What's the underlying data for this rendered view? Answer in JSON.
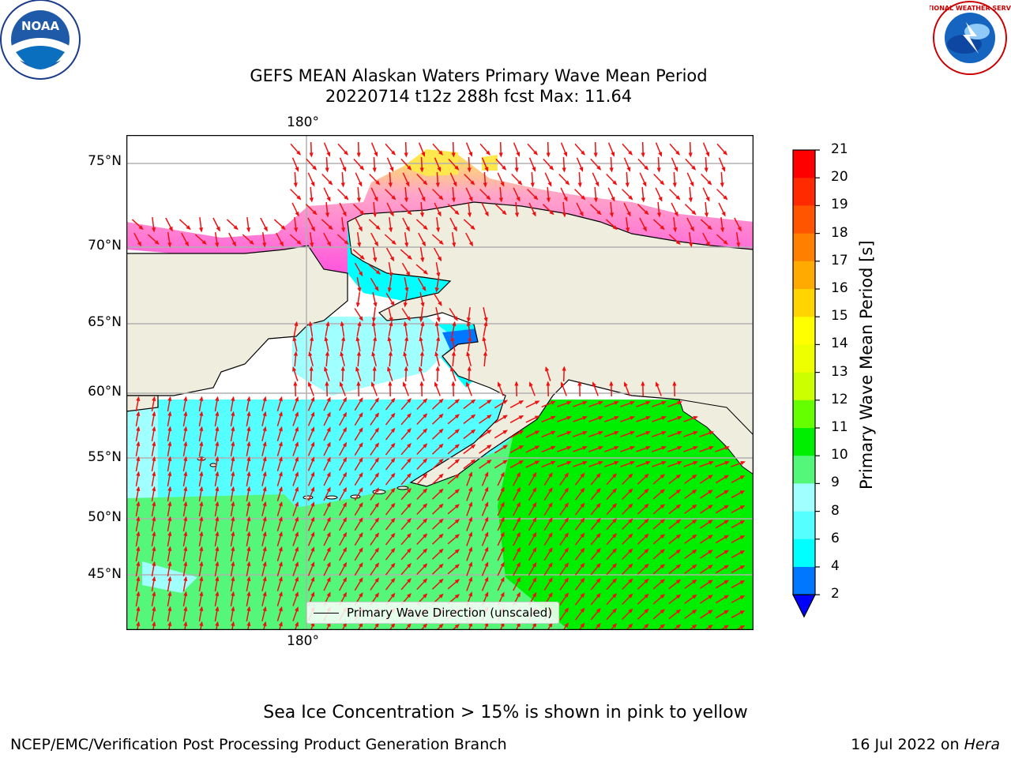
{
  "title": {
    "line1": "GEFS MEAN Alaskan Waters Primary Wave Mean Period",
    "line2": "20220714 t12z 288h fcst   Max: 11.64"
  },
  "logos": {
    "left_icon": "noaa-logo-icon",
    "left_text": "NOAA",
    "right_icon": "nws-logo-icon",
    "right_text": "NATIONAL WEATHER SERVICE"
  },
  "map": {
    "lon_label_top": "180°",
    "lon_label_bottom": "180°",
    "lat_labels": [
      "75°N",
      "70°N",
      "65°N",
      "60°N",
      "55°N",
      "50°N",
      "45°N"
    ],
    "legend_label": "Primary Wave Direction (unscaled)",
    "colors": {
      "land": "#efedde",
      "coast": "#000000",
      "grid": "#b0b0b0",
      "arrow": "#ee1111",
      "ice_pink": "#ff55dd",
      "ice_yellow": "#ffe84d"
    }
  },
  "colorbar": {
    "label": "Primary Wave Mean Period [s]",
    "ticks": [
      "21",
      "20",
      "19",
      "18",
      "17",
      "16",
      "15",
      "14",
      "13",
      "12",
      "11",
      "10",
      "9",
      "8",
      "6",
      "4",
      "2"
    ],
    "bands_top_to_bottom": [
      "#ff0000",
      "#ff2a00",
      "#ff5500",
      "#ff7f00",
      "#ffaa00",
      "#ffd400",
      "#ffff00",
      "#eeff00",
      "#ccff00",
      "#66ff00",
      "#00ee00",
      "#55f77a",
      "#a0ffff",
      "#55ffff",
      "#00ffff",
      "#0077ff"
    ],
    "extend_color": "#0000ff"
  },
  "footer": {
    "note": "Sea Ice Concentration > 15% is shown in pink to yellow",
    "left": "NCEP/EMC/Verification Post Processing Product Generation Branch",
    "right_prefix": "16 Jul 2022 on ",
    "right_host": "Hera"
  }
}
